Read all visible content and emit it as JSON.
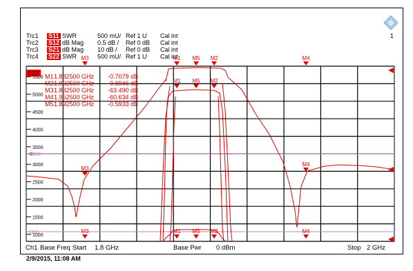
{
  "traces": [
    {
      "name": "Trc1",
      "param": "S11",
      "format": "SWR",
      "scale": "500 mU/",
      "ref": "Ref 1 U",
      "cal": "Cal int"
    },
    {
      "name": "Trc2",
      "param": "S12",
      "format": "dB Mag",
      "scale": "0.5 dB /",
      "ref": "Ref 0 dB",
      "cal": "Cal int"
    },
    {
      "name": "Trc3",
      "param": "S21",
      "format": "dB Mag",
      "scale": "10 dB /",
      "ref": "Ref 0 dB",
      "cal": "Cal int"
    },
    {
      "name": "Trc4",
      "param": "S22",
      "format": "SWR",
      "scale": "500 mU/",
      "ref": "Ref 1 U",
      "cal": "Cal int"
    }
  ],
  "active_trace_tag": "S22",
  "channel_number": "1",
  "y_ticks": [
    "5500",
    "5000",
    "4500",
    "4000",
    "3500",
    "3000",
    "2500",
    "2000",
    "1500",
    "1000"
  ],
  "ref_line_labels": [
    "-5000",
    "1300"
  ],
  "marker_readouts": [
    {
      "label": "M1",
      "freq": "1.882500 GHz",
      "value": "-0.7079 dB"
    },
    {
      "label": "M2",
      "freq": "1.902500 GHz",
      "value": "-0.6946 dB"
    },
    {
      "label": "M3",
      "freq": "1.832500 GHz",
      "value": "-63.490 dB"
    },
    {
      "label": "M4",
      "freq": "1.952500 GHz",
      "value": "-60.634 dB"
    },
    {
      "label": "M5",
      "freq": "1.892500 GHz",
      "value": "-0.5933 dB"
    }
  ],
  "marker_tags": {
    "top": [
      "M3",
      "M1",
      "M5",
      "M2",
      "M4"
    ],
    "middle": [
      "M1",
      "M5",
      "M2"
    ],
    "lower": [
      "M3",
      "M4"
    ],
    "bottom": [
      "M3",
      "M1",
      "M5",
      "M2",
      "M4"
    ]
  },
  "footer": {
    "channel": "Ch1",
    "sweep": "Base Freq",
    "start_label": "Start",
    "start": "1.8 GHz",
    "power_label": "Base Pwr",
    "power": "0 dBm",
    "stop_label": "Stop",
    "stop": "2 GHz"
  },
  "timestamp": "2/9/2015, 11:08 AM",
  "colors": {
    "trace": "#e00000",
    "grid": "#000000",
    "ref_line": "#c080c0",
    "badge": "#e00000"
  }
}
